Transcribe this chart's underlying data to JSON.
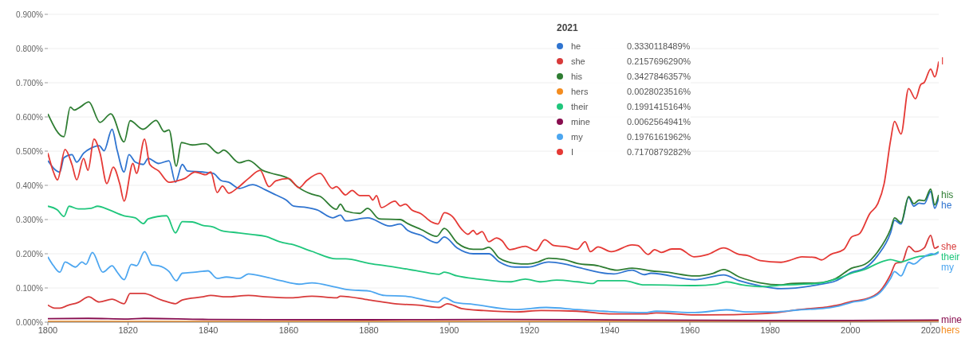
{
  "chart_data": {
    "type": "line",
    "legend_title": "2021",
    "legend": "top",
    "grid": "y",
    "xlim": [
      1800,
      2022
    ],
    "xticks": [
      1800,
      1820,
      1840,
      1860,
      1880,
      1900,
      1920,
      1940,
      1960,
      1980,
      2000,
      2020
    ],
    "ylim": [
      0,
      0.9
    ],
    "yticks": [
      {
        "value": 0,
        "label": "0.000%"
      },
      {
        "value": 0.1,
        "label": "0.100%"
      },
      {
        "value": 0.2,
        "label": "0.200%"
      },
      {
        "value": 0.3,
        "label": "0.300%"
      },
      {
        "value": 0.4,
        "label": "0.400%"
      },
      {
        "value": 0.5,
        "label": "0.500%"
      },
      {
        "value": 0.6,
        "label": "0.600%"
      },
      {
        "value": 0.7,
        "label": "0.700%"
      },
      {
        "value": 0.8,
        "label": "0.800%"
      },
      {
        "value": 0.9,
        "label": "0.900%"
      }
    ],
    "annotations": [
      "0.3330118489%",
      "0.2157696290%",
      "0.3427846357%",
      "0.0028023516%",
      "0.1991415164%",
      "0.0062564941%",
      "0.1976161962%",
      "0.7170879282%"
    ],
    "series": [
      {
        "name": "he",
        "color": "#2f74d0",
        "x": [
          1800,
          1803,
          1804,
          1806,
          1807.2,
          1808.9,
          1810.8,
          1812.8,
          1814,
          1816,
          1817.3,
          1819,
          1820.2,
          1821.8,
          1823.8,
          1825,
          1827.6,
          1830.2,
          1831.8,
          1833.5,
          1834.8,
          1838.6,
          1841.2,
          1843.2,
          1845.1,
          1847.7,
          1851,
          1854.2,
          1856.8,
          1859.4,
          1861.3,
          1864.5,
          1867.1,
          1871,
          1872.9,
          1874.2,
          1879.7,
          1885.2,
          1887.8,
          1889.7,
          1893,
          1896.9,
          1898.8,
          1902,
          1906,
          1909.9,
          1912.5,
          1916.4,
          1919.6,
          1924.8,
          1928.7,
          1931.9,
          1941,
          1945.6,
          1948.7,
          1950.3,
          1961.3,
          1968.4,
          1972.3,
          1977.5,
          1982.7,
          1991.8,
          1996.4,
          2000.3,
          2003.6,
          2006.8,
          2010,
          2011,
          2012.6,
          2014.5,
          2015.8,
          2017.1,
          2018.4,
          2020,
          2021,
          2022
        ],
        "values": [
          0.472,
          0.439,
          0.481,
          0.49,
          0.468,
          0.494,
          0.509,
          0.516,
          0.501,
          0.564,
          0.501,
          0.439,
          0.49,
          0.468,
          0.461,
          0.479,
          0.464,
          0.472,
          0.409,
          0.461,
          0.442,
          0.439,
          0.435,
          0.414,
          0.409,
          0.391,
          0.402,
          0.387,
          0.372,
          0.357,
          0.339,
          0.335,
          0.328,
          0.305,
          0.313,
          0.296,
          0.305,
          0.281,
          0.287,
          0.268,
          0.254,
          0.232,
          0.249,
          0.217,
          0.2,
          0.2,
          0.176,
          0.161,
          0.161,
          0.176,
          0.17,
          0.161,
          0.141,
          0.152,
          0.139,
          0.143,
          0.124,
          0.138,
          0.121,
          0.106,
          0.098,
          0.109,
          0.121,
          0.146,
          0.158,
          0.195,
          0.261,
          0.298,
          0.287,
          0.365,
          0.339,
          0.348,
          0.346,
          0.382,
          0.333,
          0.365
        ]
      },
      {
        "name": "she",
        "color": "#d83a3a",
        "x": [
          1800,
          1801.7,
          1803,
          1805,
          1807.6,
          1810.2,
          1812.8,
          1816,
          1819,
          1820.5,
          1823.8,
          1828.3,
          1831.8,
          1833.5,
          1838.6,
          1840.6,
          1844.5,
          1850,
          1854.2,
          1860.6,
          1865.8,
          1871.9,
          1872.9,
          1880,
          1886.5,
          1893,
          1897.5,
          1899.5,
          1903.4,
          1908.6,
          1916.4,
          1922.9,
          1931.9,
          1940.4,
          1948.7,
          1951.6,
          1961.3,
          1971,
          1980.8,
          1987.3,
          1993.8,
          1997,
          2000.3,
          2003.6,
          2007.4,
          2010,
          2011.3,
          2012.9,
          2014.5,
          2016.2,
          2018.4,
          2020,
          2021,
          2022
        ],
        "values": [
          0.05,
          0.041,
          0.041,
          0.049,
          0.058,
          0.074,
          0.059,
          0.067,
          0.054,
          0.084,
          0.084,
          0.065,
          0.054,
          0.065,
          0.074,
          0.078,
          0.074,
          0.078,
          0.074,
          0.071,
          0.076,
          0.071,
          0.076,
          0.065,
          0.054,
          0.049,
          0.043,
          0.054,
          0.039,
          0.034,
          0.03,
          0.034,
          0.032,
          0.024,
          0.024,
          0.027,
          0.021,
          0.022,
          0.027,
          0.037,
          0.044,
          0.05,
          0.061,
          0.067,
          0.091,
          0.139,
          0.172,
          0.176,
          0.222,
          0.206,
          0.217,
          0.254,
          0.216,
          0.222
        ]
      },
      {
        "name": "his",
        "color": "#2e7d32",
        "x": [
          1800,
          1804,
          1805.6,
          1806.6,
          1808.2,
          1810.2,
          1813,
          1815.7,
          1819,
          1820.5,
          1823.7,
          1827,
          1829,
          1830.2,
          1832,
          1833.3,
          1836,
          1839.3,
          1842.5,
          1843.8,
          1847.7,
          1850,
          1853.5,
          1855.5,
          1860,
          1862,
          1865.8,
          1867.8,
          1871.9,
          1872.9,
          1874.2,
          1877.7,
          1879.7,
          1882.6,
          1887.8,
          1889.7,
          1893,
          1896.9,
          1898.8,
          1902,
          1906,
          1908.2,
          1909.9,
          1912.5,
          1916.4,
          1919.6,
          1922.2,
          1924.8,
          1928.7,
          1931.9,
          1937.1,
          1941.7,
          1945.6,
          1950.3,
          1954.2,
          1961.3,
          1965.8,
          1968.4,
          1972.3,
          1977.5,
          1982.7,
          1985.3,
          1991.8,
          1996.4,
          2000.3,
          2003.6,
          2006.8,
          2010,
          2011,
          2012.6,
          2014.5,
          2015.8,
          2017.1,
          2018.4,
          2020,
          2021,
          2022
        ],
        "values": [
          0.609,
          0.542,
          0.629,
          0.62,
          0.63,
          0.644,
          0.584,
          0.609,
          0.527,
          0.589,
          0.564,
          0.59,
          0.557,
          0.562,
          0.456,
          0.525,
          0.518,
          0.522,
          0.494,
          0.503,
          0.466,
          0.473,
          0.444,
          0.436,
          0.42,
          0.398,
          0.374,
          0.368,
          0.33,
          0.345,
          0.325,
          0.318,
          0.333,
          0.302,
          0.3,
          0.288,
          0.271,
          0.251,
          0.274,
          0.232,
          0.213,
          0.213,
          0.219,
          0.187,
          0.172,
          0.17,
          0.176,
          0.187,
          0.183,
          0.172,
          0.165,
          0.152,
          0.158,
          0.15,
          0.146,
          0.135,
          0.143,
          0.154,
          0.132,
          0.115,
          0.109,
          0.113,
          0.115,
          0.128,
          0.158,
          0.169,
          0.206,
          0.272,
          0.305,
          0.291,
          0.367,
          0.346,
          0.357,
          0.355,
          0.389,
          0.343,
          0.372
        ]
      },
      {
        "name": "hers",
        "color": "#f48c1f",
        "x": [
          1800,
          1850,
          1900,
          1950,
          1980,
          2000,
          2021,
          2022
        ],
        "values": [
          0.002,
          0.002,
          0.002,
          0.002,
          0.002,
          0.002,
          0.003,
          0.003
        ]
      },
      {
        "name": "their",
        "color": "#1fc67c",
        "x": [
          1800,
          1802.4,
          1804,
          1805.3,
          1807.6,
          1810.8,
          1812.4,
          1815.3,
          1819,
          1821.8,
          1823.8,
          1825,
          1829.6,
          1831.8,
          1833.5,
          1836,
          1838.6,
          1841.2,
          1843.2,
          1847.7,
          1851,
          1854.2,
          1858.1,
          1860.6,
          1865.8,
          1871.9,
          1874.2,
          1880,
          1886.5,
          1893,
          1897.5,
          1898.8,
          1902,
          1907.3,
          1915.1,
          1919,
          1922.9,
          1926.8,
          1931.9,
          1935.8,
          1937.1,
          1943.6,
          1948.7,
          1950.3,
          1961.3,
          1966.5,
          1969.1,
          1973,
          1977.5,
          1984,
          1991.8,
          1997,
          2000.3,
          2003.6,
          2006.8,
          2010,
          2012.6,
          2014.5,
          2017.1,
          2019.7,
          2021,
          2022
        ],
        "values": [
          0.339,
          0.328,
          0.309,
          0.339,
          0.331,
          0.333,
          0.339,
          0.328,
          0.311,
          0.305,
          0.288,
          0.302,
          0.311,
          0.261,
          0.294,
          0.293,
          0.283,
          0.278,
          0.268,
          0.261,
          0.256,
          0.251,
          0.234,
          0.228,
          0.207,
          0.185,
          0.185,
          0.172,
          0.161,
          0.148,
          0.14,
          0.146,
          0.135,
          0.126,
          0.118,
          0.126,
          0.118,
          0.123,
          0.118,
          0.113,
          0.121,
          0.121,
          0.109,
          0.109,
          0.107,
          0.111,
          0.118,
          0.109,
          0.104,
          0.109,
          0.113,
          0.128,
          0.143,
          0.154,
          0.172,
          0.183,
          0.176,
          0.183,
          0.192,
          0.195,
          0.199,
          0.206
        ]
      },
      {
        "name": "mine",
        "color": "#880e4f",
        "x": [
          1800,
          1810,
          1820,
          1824,
          1840,
          1880,
          1910,
          1950,
          1980,
          2000,
          2021,
          2022
        ],
        "values": [
          0.01,
          0.011,
          0.009,
          0.011,
          0.008,
          0.007,
          0.008,
          0.006,
          0.005,
          0.005,
          0.006,
          0.006
        ]
      },
      {
        "name": "my",
        "color": "#4ca6f0",
        "x": [
          1800,
          1801.4,
          1803,
          1804.3,
          1806.9,
          1808.5,
          1809.5,
          1811.1,
          1813.7,
          1816,
          1817.3,
          1819,
          1820.8,
          1822.1,
          1824.1,
          1826,
          1827.6,
          1830.2,
          1832,
          1833.5,
          1836.7,
          1839.9,
          1842.2,
          1844.5,
          1847.7,
          1850,
          1854.2,
          1858.1,
          1862.6,
          1865.8,
          1871.9,
          1874.8,
          1880,
          1883.9,
          1889.1,
          1897.2,
          1898.8,
          1901.4,
          1906,
          1916.4,
          1924.2,
          1931.9,
          1938.4,
          1948.7,
          1951.6,
          1961.3,
          1969.1,
          1974.3,
          1980.8,
          1987.3,
          1993.8,
          1997,
          2000.3,
          2003.6,
          2007.4,
          2010,
          2011,
          2012.6,
          2014.5,
          2015.8,
          2017.8,
          2020.3,
          2021,
          2022
        ],
        "values": [
          0.191,
          0.165,
          0.146,
          0.176,
          0.161,
          0.176,
          0.169,
          0.204,
          0.146,
          0.165,
          0.146,
          0.124,
          0.169,
          0.165,
          0.206,
          0.167,
          0.165,
          0.148,
          0.121,
          0.143,
          0.146,
          0.15,
          0.128,
          0.132,
          0.128,
          0.141,
          0.132,
          0.121,
          0.111,
          0.115,
          0.102,
          0.095,
          0.091,
          0.078,
          0.076,
          0.059,
          0.072,
          0.058,
          0.052,
          0.037,
          0.043,
          0.037,
          0.032,
          0.028,
          0.032,
          0.028,
          0.036,
          0.03,
          0.03,
          0.036,
          0.041,
          0.047,
          0.058,
          0.065,
          0.087,
          0.128,
          0.148,
          0.135,
          0.175,
          0.17,
          0.187,
          0.2,
          0.198,
          0.204
        ]
      },
      {
        "name": "I",
        "color": "#e53935",
        "x": [
          1800,
          1801.4,
          1802.4,
          1804.3,
          1806,
          1807.2,
          1808.9,
          1810,
          1811.5,
          1813,
          1814.7,
          1816.3,
          1817.9,
          1819,
          1821.2,
          1822.1,
          1824.1,
          1825.4,
          1827.6,
          1830.2,
          1832.2,
          1834.1,
          1836.7,
          1839.3,
          1840.6,
          1842.2,
          1843.5,
          1845.1,
          1847.1,
          1850,
          1852.9,
          1855.1,
          1856.8,
          1860,
          1862.6,
          1864.5,
          1867.8,
          1870.9,
          1871.9,
          1874.2,
          1875.8,
          1877.7,
          1880,
          1881,
          1881.9,
          1883.1,
          1886.5,
          1887.8,
          1889.1,
          1890.7,
          1893,
          1895.6,
          1897.2,
          1898.8,
          1900.8,
          1903.1,
          1904.7,
          1906,
          1906.9,
          1908.2,
          1909.9,
          1911.8,
          1913.1,
          1915.1,
          1919,
          1921.6,
          1923.8,
          1926.1,
          1929.4,
          1931.9,
          1933.9,
          1935.2,
          1937.1,
          1940.4,
          1945.6,
          1947,
          1949.6,
          1951.2,
          1952.9,
          1955.5,
          1957.4,
          1961,
          1964.5,
          1968.4,
          1972.3,
          1974.3,
          1977.5,
          1982.7,
          1984.7,
          1987.9,
          1991.2,
          1992.8,
          1995.1,
          1998.3,
          2000.3,
          2002.3,
          2004.8,
          2006.8,
          2008.4,
          2010,
          2011,
          2012.6,
          2014.5,
          2016.2,
          2017.5,
          2018.4,
          2020,
          2021,
          2022
        ],
        "values": [
          0.494,
          0.439,
          0.416,
          0.505,
          0.461,
          0.416,
          0.479,
          0.444,
          0.535,
          0.494,
          0.405,
          0.453,
          0.405,
          0.354,
          0.464,
          0.435,
          0.535,
          0.461,
          0.442,
          0.409,
          0.413,
          0.42,
          0.439,
          0.431,
          0.439,
          0.379,
          0.398,
          0.377,
          0.391,
          0.42,
          0.444,
          0.396,
          0.413,
          0.42,
          0.393,
          0.414,
          0.435,
          0.391,
          0.396,
          0.372,
          0.385,
          0.37,
          0.37,
          0.357,
          0.37,
          0.335,
          0.354,
          0.34,
          0.345,
          0.328,
          0.317,
          0.293,
          0.287,
          0.32,
          0.309,
          0.272,
          0.257,
          0.268,
          0.257,
          0.265,
          0.235,
          0.246,
          0.239,
          0.212,
          0.222,
          0.209,
          0.241,
          0.224,
          0.22,
          0.213,
          0.235,
          0.206,
          0.22,
          0.206,
          0.226,
          0.224,
          0.198,
          0.212,
          0.204,
          0.214,
          0.214,
          0.191,
          0.198,
          0.217,
          0.198,
          0.195,
          0.18,
          0.175,
          0.18,
          0.191,
          0.189,
          0.182,
          0.198,
          0.212,
          0.249,
          0.259,
          0.317,
          0.346,
          0.405,
          0.531,
          0.587,
          0.55,
          0.683,
          0.653,
          0.694,
          0.701,
          0.74,
          0.717,
          0.762
        ]
      }
    ]
  }
}
